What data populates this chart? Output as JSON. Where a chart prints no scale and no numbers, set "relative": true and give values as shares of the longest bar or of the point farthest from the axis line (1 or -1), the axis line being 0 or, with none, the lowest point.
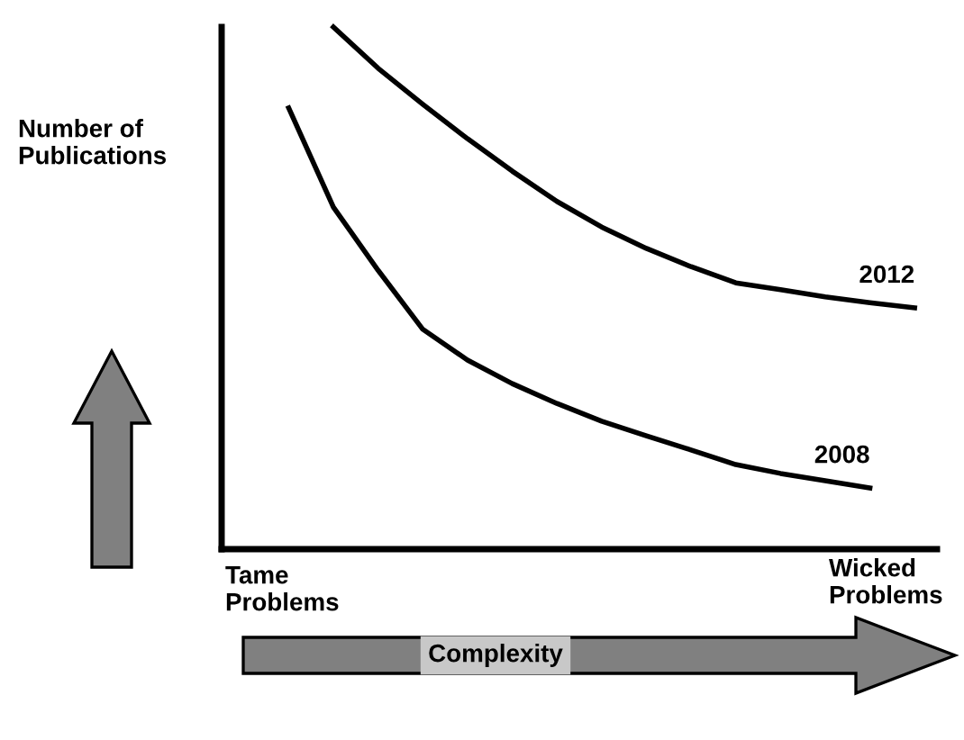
{
  "chart_data": {
    "type": "line",
    "relative": true,
    "legend": false,
    "marker": "none",
    "line_style": "solid",
    "ylabel": "Number of Publications",
    "xlabel": "Complexity",
    "annotations": [
      "Tame Problems",
      "Wicked Problems"
    ],
    "categories": [
      null,
      null,
      null,
      null,
      null,
      null,
      null,
      null,
      null,
      null,
      null,
      null,
      null,
      null,
      null,
      null
    ],
    "series": [
      {
        "name": "2012",
        "color": "#000000",
        "values": [
          null,
          null,
          1.0,
          0.921,
          0.852,
          0.786,
          0.724,
          0.666,
          0.617,
          0.576,
          0.541,
          0.51,
          0.497,
          0.483,
          0.472,
          0.462
        ]
      },
      {
        "name": "2008",
        "color": "#000000",
        "values": [
          null,
          0.845,
          0.655,
          0.534,
          0.421,
          0.362,
          0.317,
          0.279,
          0.245,
          0.217,
          0.19,
          0.162,
          0.145,
          0.131,
          0.117,
          null
        ]
      }
    ]
  }
}
